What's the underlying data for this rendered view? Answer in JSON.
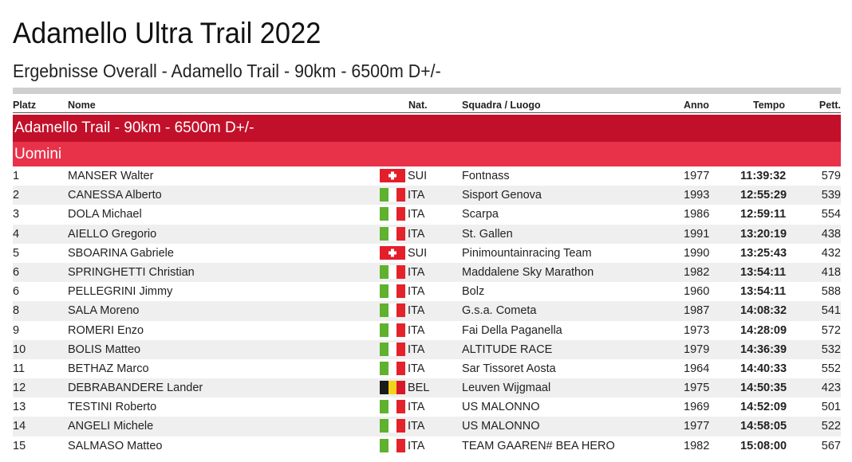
{
  "title": "Adamello Ultra Trail 2022",
  "subtitle": "Ergebnisse Overall - Adamello Trail - 90km - 6500m D+/-",
  "columns": {
    "platz": "Platz",
    "nome": "Nome",
    "nat": "Nat.",
    "squadra": "Squadra / Luogo",
    "anno": "Anno",
    "tempo": "Tempo",
    "pett": "Pett."
  },
  "race_label": "Adamello Trail - 90km - 6500m D+/-",
  "category_label": "Uomini",
  "colors": {
    "race_bar": "#c3102a",
    "category_bar": "#e8324a",
    "row_alt": "#efefef"
  },
  "rows": [
    {
      "platz": "1",
      "nome": "MANSER Walter",
      "nat": "SUI",
      "flag": "swiss-flag-icon",
      "squadra": "Fontnass",
      "anno": "1977",
      "tempo": "11:39:32",
      "pett": "579"
    },
    {
      "platz": "2",
      "nome": "CANESSA Alberto",
      "nat": "ITA",
      "flag": "italian-flag-icon",
      "squadra": "Sisport Genova",
      "anno": "1993",
      "tempo": "12:55:29",
      "pett": "539"
    },
    {
      "platz": "3",
      "nome": "DOLA Michael",
      "nat": "ITA",
      "flag": "italian-flag-icon",
      "squadra": "Scarpa",
      "anno": "1986",
      "tempo": "12:59:11",
      "pett": "554"
    },
    {
      "platz": "4",
      "nome": "AIELLO Gregorio",
      "nat": "ITA",
      "flag": "italian-flag-icon",
      "squadra": "St. Gallen",
      "anno": "1991",
      "tempo": "13:20:19",
      "pett": "438"
    },
    {
      "platz": "5",
      "nome": "SBOARINA Gabriele",
      "nat": "SUI",
      "flag": "swiss-flag-icon",
      "squadra": "Pinimountainracing Team",
      "anno": "1990",
      "tempo": "13:25:43",
      "pett": "432"
    },
    {
      "platz": "6",
      "nome": "SPRINGHETTI Christian",
      "nat": "ITA",
      "flag": "italian-flag-icon",
      "squadra": "Maddalene Sky Marathon",
      "anno": "1982",
      "tempo": "13:54:11",
      "pett": "418"
    },
    {
      "platz": "6",
      "nome": "PELLEGRINI Jimmy",
      "nat": "ITA",
      "flag": "italian-flag-icon",
      "squadra": "Bolz",
      "anno": "1960",
      "tempo": "13:54:11",
      "pett": "588"
    },
    {
      "platz": "8",
      "nome": "SALA Moreno",
      "nat": "ITA",
      "flag": "italian-flag-icon",
      "squadra": "G.s.a. Cometa",
      "anno": "1987",
      "tempo": "14:08:32",
      "pett": "541"
    },
    {
      "platz": "9",
      "nome": "ROMERI Enzo",
      "nat": "ITA",
      "flag": "italian-flag-icon",
      "squadra": "Fai Della Paganella",
      "anno": "1973",
      "tempo": "14:28:09",
      "pett": "572"
    },
    {
      "platz": "10",
      "nome": "BOLIS Matteo",
      "nat": "ITA",
      "flag": "italian-flag-icon",
      "squadra": "ALTITUDE RACE",
      "anno": "1979",
      "tempo": "14:36:39",
      "pett": "532"
    },
    {
      "platz": "11",
      "nome": "BETHAZ Marco",
      "nat": "ITA",
      "flag": "italian-flag-icon",
      "squadra": "Sar Tissoret Aosta",
      "anno": "1964",
      "tempo": "14:40:33",
      "pett": "552"
    },
    {
      "platz": "12",
      "nome": "DEBRABANDERE Lander",
      "nat": "BEL",
      "flag": "belgian-flag-icon",
      "squadra": "Leuven Wijgmaal",
      "anno": "1975",
      "tempo": "14:50:35",
      "pett": "423"
    },
    {
      "platz": "13",
      "nome": "TESTINI Roberto",
      "nat": "ITA",
      "flag": "italian-flag-icon",
      "squadra": "US MALONNO",
      "anno": "1969",
      "tempo": "14:52:09",
      "pett": "501"
    },
    {
      "platz": "14",
      "nome": "ANGELI Michele",
      "nat": "ITA",
      "flag": "italian-flag-icon",
      "squadra": "US MALONNO",
      "anno": "1977",
      "tempo": "14:58:05",
      "pett": "522"
    },
    {
      "platz": "15",
      "nome": "SALMASO Matteo",
      "nat": "ITA",
      "flag": "italian-flag-icon",
      "squadra": "TEAM GAAREN# BEA HERO",
      "anno": "1982",
      "tempo": "15:08:00",
      "pett": "567"
    }
  ]
}
